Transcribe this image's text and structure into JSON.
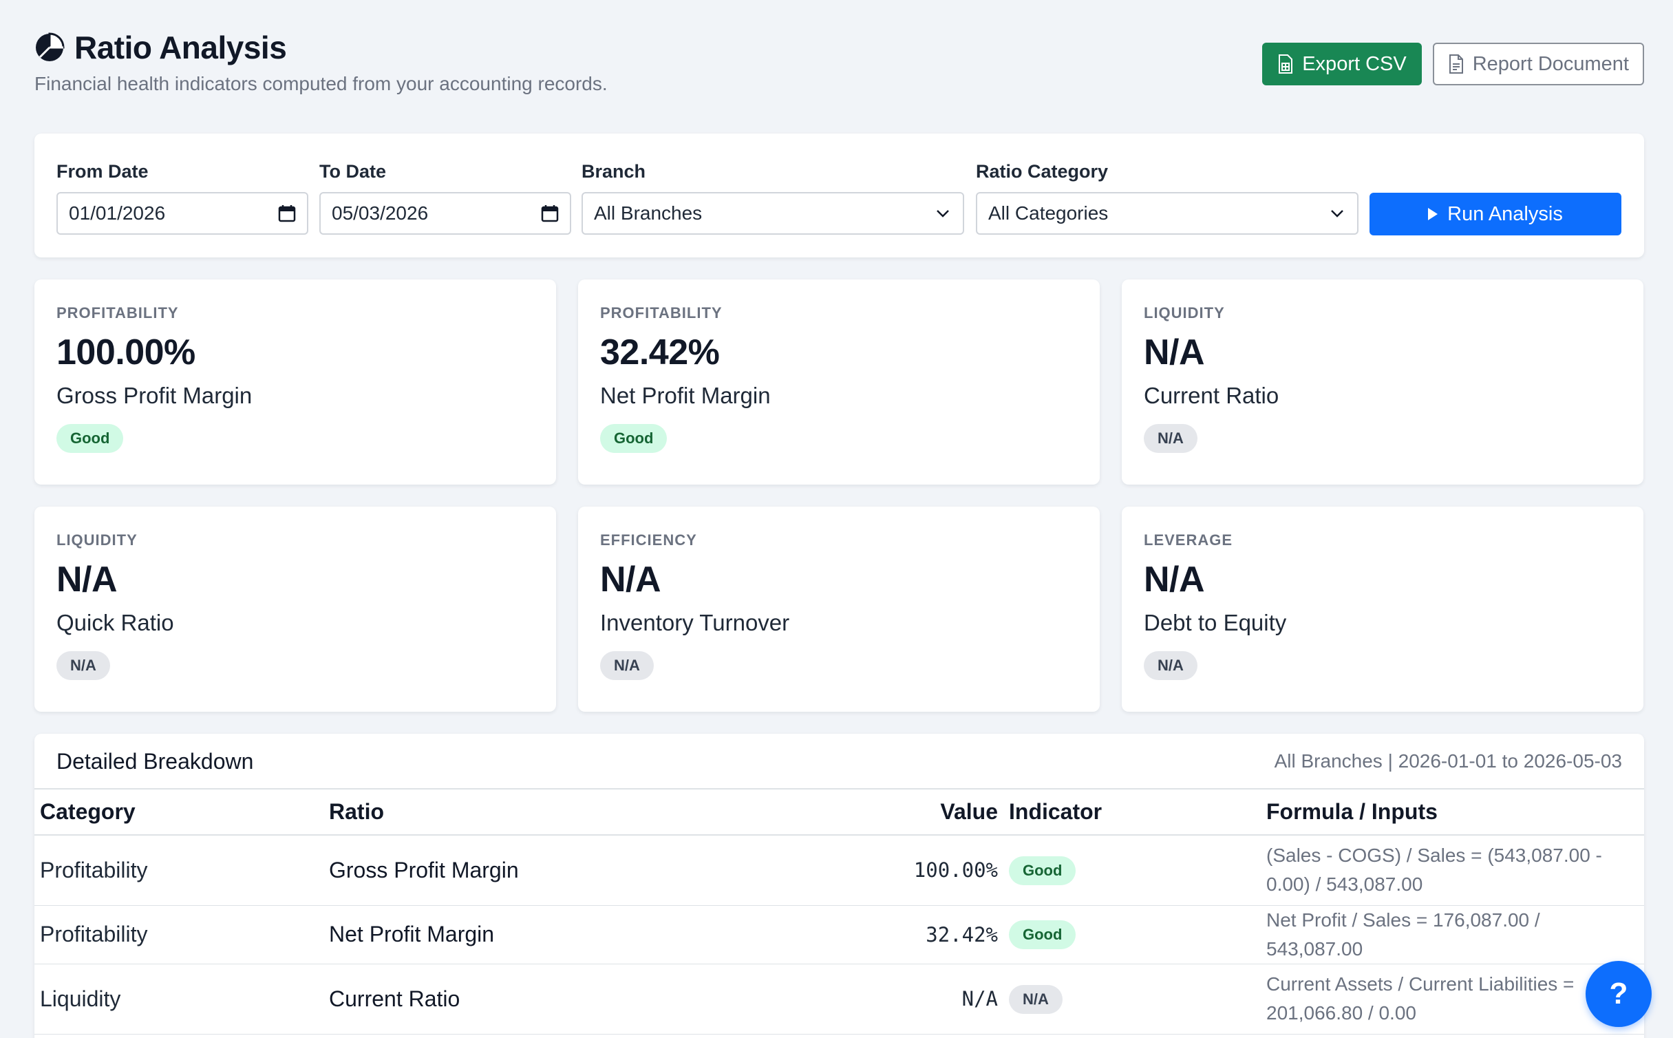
{
  "header": {
    "title": "Ratio Analysis",
    "subtitle": "Financial health indicators computed from your accounting records.",
    "export_csv_label": "Export CSV",
    "report_document_label": "Report Document"
  },
  "filters": {
    "from_date": {
      "label": "From Date",
      "value": "01/01/2026"
    },
    "to_date": {
      "label": "To Date",
      "value": "05/03/2026"
    },
    "branch": {
      "label": "Branch",
      "value": "All Branches"
    },
    "ratio_category": {
      "label": "Ratio Category",
      "value": "All Categories"
    },
    "run_label": "Run Analysis"
  },
  "cards": [
    {
      "category": "PROFITABILITY",
      "value": "100.00%",
      "name": "Gross Profit Margin",
      "indicator": "Good"
    },
    {
      "category": "PROFITABILITY",
      "value": "32.42%",
      "name": "Net Profit Margin",
      "indicator": "Good"
    },
    {
      "category": "LIQUIDITY",
      "value": "N/A",
      "name": "Current Ratio",
      "indicator": "N/A"
    },
    {
      "category": "LIQUIDITY",
      "value": "N/A",
      "name": "Quick Ratio",
      "indicator": "N/A"
    },
    {
      "category": "EFFICIENCY",
      "value": "N/A",
      "name": "Inventory Turnover",
      "indicator": "N/A"
    },
    {
      "category": "LEVERAGE",
      "value": "N/A",
      "name": "Debt to Equity",
      "indicator": "N/A"
    }
  ],
  "breakdown": {
    "title": "Detailed Breakdown",
    "meta": "All Branches | 2026-01-01 to 2026-05-03",
    "columns": {
      "category": "Category",
      "ratio": "Ratio",
      "value": "Value",
      "indicator": "Indicator",
      "formula": "Formula / Inputs"
    },
    "rows": [
      {
        "category": "Profitability",
        "ratio": "Gross Profit Margin",
        "value": "100.00%",
        "indicator": "Good",
        "formula": "(Sales - COGS) / Sales = (543,087.00 - 0.00) / 543,087.00"
      },
      {
        "category": "Profitability",
        "ratio": "Net Profit Margin",
        "value": "32.42%",
        "indicator": "Good",
        "formula": "Net Profit / Sales = 176,087.00 / 543,087.00"
      },
      {
        "category": "Liquidity",
        "ratio": "Current Ratio",
        "value": "N/A",
        "indicator": "N/A",
        "formula": "Current Assets / Current Liabilities = 201,066.80 / 0.00"
      }
    ]
  },
  "help_label": "?",
  "colors": {
    "primary": "#0d6efd",
    "success": "#198754",
    "good_badge_bg": "#d1fae5",
    "na_badge_bg": "#e5e7eb",
    "page_bg": "#f1f4f8"
  },
  "icons": {
    "title": "pie-chart-icon",
    "export": "file-spreadsheet-icon",
    "report": "file-text-icon",
    "date": "calendar-icon",
    "select": "chevron-down-icon",
    "run": "play-icon"
  }
}
